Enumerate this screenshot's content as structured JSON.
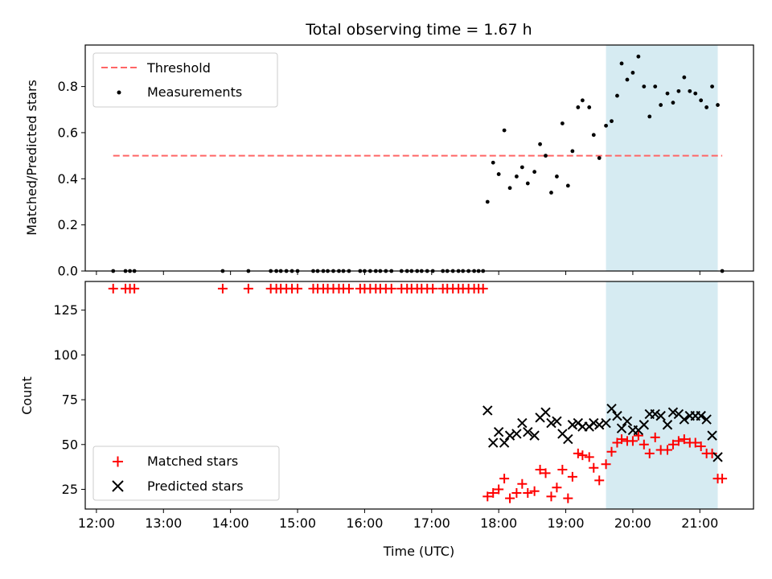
{
  "chart_data": [
    {
      "type": "scatter",
      "title": "Total observing time = 1.67 h",
      "xlabel": "",
      "ylabel": "Matched/Predicted stars",
      "xlim": [
        "11:50",
        "21:48"
      ],
      "ylim": [
        0,
        0.98
      ],
      "yticks": [
        0,
        0.2,
        0.4,
        0.6,
        0.8
      ],
      "ytick_labels": [
        "0.0",
        "0.2",
        "0.4",
        "0.6",
        "0.8"
      ],
      "legend_position": "upper-left",
      "shaded_region": {
        "x_start": "19:36",
        "x_end": "21:16",
        "color": "#add8e6"
      },
      "threshold": {
        "name": "Threshold",
        "y": 0.5,
        "x_start": "12:15",
        "x_end": "21:20",
        "color": "#ff6666",
        "style": "dashed"
      },
      "series": [
        {
          "name": "Measurements",
          "color": "#000000",
          "marker": "dot",
          "points": [
            [
              "12:15",
              0
            ],
            [
              "12:26",
              0
            ],
            [
              "12:30",
              0
            ],
            [
              "12:34",
              0
            ],
            [
              "13:53",
              0
            ],
            [
              "14:16",
              0
            ],
            [
              "14:36",
              0
            ],
            [
              "14:41",
              0
            ],
            [
              "14:45",
              0
            ],
            [
              "14:50",
              0
            ],
            [
              "14:55",
              0
            ],
            [
              "15:00",
              0
            ],
            [
              "15:14",
              0
            ],
            [
              "15:18",
              0
            ],
            [
              "15:23",
              0
            ],
            [
              "15:27",
              0
            ],
            [
              "15:32",
              0
            ],
            [
              "15:37",
              0
            ],
            [
              "15:41",
              0
            ],
            [
              "15:46",
              0
            ],
            [
              "15:56",
              0
            ],
            [
              "16:00",
              0
            ],
            [
              "16:05",
              0
            ],
            [
              "16:10",
              0
            ],
            [
              "16:14",
              0
            ],
            [
              "16:19",
              0
            ],
            [
              "16:24",
              0
            ],
            [
              "16:33",
              0
            ],
            [
              "16:38",
              0
            ],
            [
              "16:42",
              0
            ],
            [
              "16:47",
              0
            ],
            [
              "16:51",
              0
            ],
            [
              "16:56",
              0
            ],
            [
              "17:01",
              0
            ],
            [
              "17:10",
              0
            ],
            [
              "17:14",
              0
            ],
            [
              "17:19",
              0
            ],
            [
              "17:24",
              0
            ],
            [
              "17:28",
              0
            ],
            [
              "17:33",
              0
            ],
            [
              "17:38",
              0
            ],
            [
              "17:42",
              0
            ],
            [
              "17:46",
              0
            ],
            [
              "17:50",
              0.3
            ],
            [
              "17:55",
              0.47
            ],
            [
              "18:00",
              0.42
            ],
            [
              "18:05",
              0.61
            ],
            [
              "18:10",
              0.36
            ],
            [
              "18:16",
              0.41
            ],
            [
              "18:21",
              0.45
            ],
            [
              "18:26",
              0.38
            ],
            [
              "18:32",
              0.43
            ],
            [
              "18:37",
              0.55
            ],
            [
              "18:42",
              0.5
            ],
            [
              "18:47",
              0.34
            ],
            [
              "18:52",
              0.41
            ],
            [
              "18:57",
              0.64
            ],
            [
              "19:02",
              0.37
            ],
            [
              "19:06",
              0.52
            ],
            [
              "19:11",
              0.71
            ],
            [
              "19:15",
              0.74
            ],
            [
              "19:21",
              0.71
            ],
            [
              "19:25",
              0.59
            ],
            [
              "19:30",
              0.49
            ],
            [
              "19:36",
              0.63
            ],
            [
              "19:41",
              0.65
            ],
            [
              "19:46",
              0.76
            ],
            [
              "19:50",
              0.9
            ],
            [
              "19:55",
              0.83
            ],
            [
              "20:00",
              0.86
            ],
            [
              "20:05",
              0.93
            ],
            [
              "20:10",
              0.8
            ],
            [
              "20:15",
              0.67
            ],
            [
              "20:20",
              0.8
            ],
            [
              "20:25",
              0.72
            ],
            [
              "20:31",
              0.77
            ],
            [
              "20:36",
              0.73
            ],
            [
              "20:41",
              0.78
            ],
            [
              "20:46",
              0.84
            ],
            [
              "20:51",
              0.78
            ],
            [
              "20:56",
              0.77
            ],
            [
              "21:01",
              0.74
            ],
            [
              "21:06",
              0.71
            ],
            [
              "21:11",
              0.8
            ],
            [
              "21:16",
              0.72
            ],
            [
              "21:20",
              0
            ]
          ]
        }
      ]
    },
    {
      "type": "scatter",
      "title": "",
      "xlabel": "Time (UTC)",
      "ylabel": "Count",
      "xlim": [
        "11:50",
        "21:48"
      ],
      "ylim": [
        14,
        141
      ],
      "yticks": [
        25,
        50,
        75,
        100,
        125
      ],
      "ytick_labels": [
        "25",
        "50",
        "75",
        "100",
        "125"
      ],
      "xticks": [
        "12:00",
        "13:00",
        "14:00",
        "15:00",
        "16:00",
        "17:00",
        "18:00",
        "19:00",
        "20:00",
        "21:00"
      ],
      "legend_position": "lower-left",
      "shaded_region": {
        "x_start": "19:36",
        "x_end": "21:16",
        "color": "#add8e6"
      },
      "series": [
        {
          "name": "Matched stars",
          "color": "#ff0000",
          "marker": "plus",
          "points": [
            [
              "12:15",
              137
            ],
            [
              "12:26",
              137
            ],
            [
              "12:30",
              137
            ],
            [
              "12:34",
              137
            ],
            [
              "13:53",
              137
            ],
            [
              "14:16",
              137
            ],
            [
              "14:36",
              137
            ],
            [
              "14:41",
              137
            ],
            [
              "14:45",
              137
            ],
            [
              "14:50",
              137
            ],
            [
              "14:55",
              137
            ],
            [
              "15:00",
              137
            ],
            [
              "15:14",
              137
            ],
            [
              "15:18",
              137
            ],
            [
              "15:23",
              137
            ],
            [
              "15:27",
              137
            ],
            [
              "15:32",
              137
            ],
            [
              "15:37",
              137
            ],
            [
              "15:41",
              137
            ],
            [
              "15:46",
              137
            ],
            [
              "15:56",
              137
            ],
            [
              "16:00",
              137
            ],
            [
              "16:05",
              137
            ],
            [
              "16:10",
              137
            ],
            [
              "16:14",
              137
            ],
            [
              "16:19",
              137
            ],
            [
              "16:24",
              137
            ],
            [
              "16:33",
              137
            ],
            [
              "16:38",
              137
            ],
            [
              "16:42",
              137
            ],
            [
              "16:47",
              137
            ],
            [
              "16:51",
              137
            ],
            [
              "16:56",
              137
            ],
            [
              "17:01",
              137
            ],
            [
              "17:10",
              137
            ],
            [
              "17:14",
              137
            ],
            [
              "17:19",
              137
            ],
            [
              "17:24",
              137
            ],
            [
              "17:28",
              137
            ],
            [
              "17:33",
              137
            ],
            [
              "17:38",
              137
            ],
            [
              "17:42",
              137
            ],
            [
              "17:46",
              137
            ],
            [
              "17:50",
              21
            ],
            [
              "17:55",
              23
            ],
            [
              "18:00",
              25
            ],
            [
              "18:05",
              31
            ],
            [
              "18:10",
              20
            ],
            [
              "18:16",
              23
            ],
            [
              "18:21",
              28
            ],
            [
              "18:26",
              23
            ],
            [
              "18:32",
              24
            ],
            [
              "18:37",
              36
            ],
            [
              "18:42",
              34
            ],
            [
              "18:47",
              21
            ],
            [
              "18:52",
              26
            ],
            [
              "18:57",
              36
            ],
            [
              "19:02",
              20
            ],
            [
              "19:06",
              32
            ],
            [
              "19:11",
              45
            ],
            [
              "19:15",
              44
            ],
            [
              "19:21",
              43
            ],
            [
              "19:25",
              37
            ],
            [
              "19:30",
              30
            ],
            [
              "19:36",
              39
            ],
            [
              "19:41",
              46
            ],
            [
              "19:46",
              51
            ],
            [
              "19:50",
              53
            ],
            [
              "19:55",
              52
            ],
            [
              "20:00",
              52
            ],
            [
              "20:05",
              55
            ],
            [
              "20:10",
              50
            ],
            [
              "20:15",
              45
            ],
            [
              "20:20",
              54
            ],
            [
              "20:25",
              47
            ],
            [
              "20:31",
              47
            ],
            [
              "20:36",
              50
            ],
            [
              "20:41",
              52
            ],
            [
              "20:46",
              53
            ],
            [
              "20:51",
              51
            ],
            [
              "20:56",
              51
            ],
            [
              "21:01",
              49
            ],
            [
              "21:06",
              45
            ],
            [
              "21:11",
              45
            ],
            [
              "21:16",
              31
            ],
            [
              "21:20",
              31
            ]
          ]
        },
        {
          "name": "Predicted stars",
          "color": "#000000",
          "marker": "x",
          "points": [
            [
              "17:50",
              69
            ],
            [
              "17:55",
              51
            ],
            [
              "18:00",
              57
            ],
            [
              "18:05",
              51
            ],
            [
              "18:10",
              55
            ],
            [
              "18:16",
              56
            ],
            [
              "18:21",
              62
            ],
            [
              "18:26",
              57
            ],
            [
              "18:32",
              55
            ],
            [
              "18:37",
              65
            ],
            [
              "18:42",
              68
            ],
            [
              "18:47",
              62
            ],
            [
              "18:52",
              63
            ],
            [
              "18:57",
              56
            ],
            [
              "19:02",
              53
            ],
            [
              "19:06",
              61
            ],
            [
              "19:11",
              62
            ],
            [
              "19:15",
              60
            ],
            [
              "19:21",
              60
            ],
            [
              "19:25",
              62
            ],
            [
              "19:30",
              61
            ],
            [
              "19:36",
              62
            ],
            [
              "19:41",
              70
            ],
            [
              "19:46",
              66
            ],
            [
              "19:50",
              59
            ],
            [
              "19:55",
              63
            ],
            [
              "20:00",
              58
            ],
            [
              "20:05",
              58
            ],
            [
              "20:10",
              61
            ],
            [
              "20:15",
              67
            ],
            [
              "20:20",
              67
            ],
            [
              "20:25",
              66
            ],
            [
              "20:31",
              61
            ],
            [
              "20:36",
              68
            ],
            [
              "20:41",
              67
            ],
            [
              "20:46",
              64
            ],
            [
              "20:51",
              66
            ],
            [
              "20:56",
              66
            ],
            [
              "21:01",
              66
            ],
            [
              "21:06",
              64
            ],
            [
              "21:11",
              55
            ],
            [
              "21:16",
              43
            ]
          ]
        }
      ]
    }
  ]
}
